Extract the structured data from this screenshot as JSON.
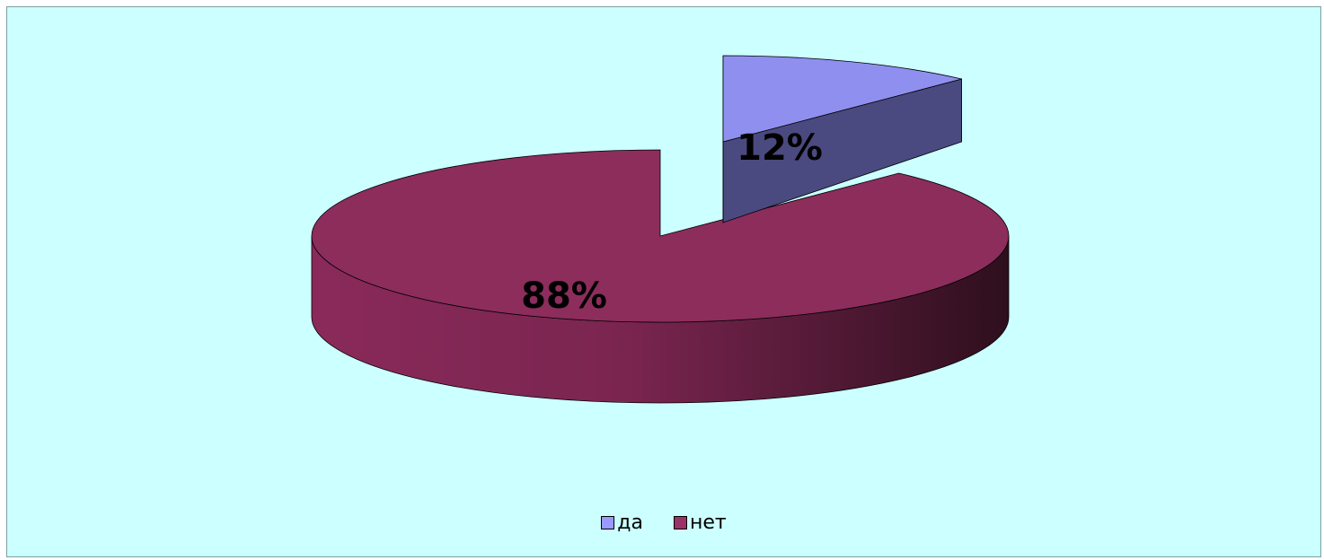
{
  "chart_data": {
    "type": "pie",
    "style": "3d-exploded",
    "categories": [
      "да",
      "нет"
    ],
    "values": [
      12,
      88
    ],
    "data_labels": [
      "12%",
      "88%"
    ],
    "colors": [
      "#9999ff",
      "#993366"
    ],
    "legend_position": "bottom",
    "background": "#ccffff"
  },
  "legend": [
    {
      "label": "да",
      "color": "#9999ff"
    },
    {
      "label": "нет",
      "color": "#993366"
    }
  ]
}
